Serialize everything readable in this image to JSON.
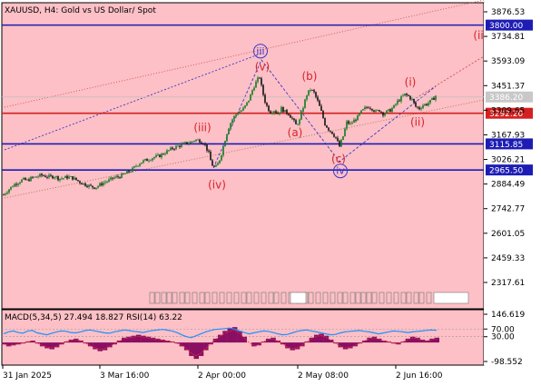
{
  "chart_data": {
    "type": "candlestick",
    "title": "XAUUSD, H4:  Gold vs US Dollar/ Spot",
    "y_ticks": [
      "3876.53",
      "3734.81",
      "3593.09",
      "3451.37",
      "3309.65",
      "3167.93",
      "3026.21",
      "2884.49",
      "2742.77",
      "2601.05",
      "2459.33",
      "2317.61"
    ],
    "x_ticks": [
      "31 Jan 2025",
      "3 Mar 16:00",
      "2 Apr 00:00",
      "2 May 08:00",
      "2 Jun 16:00"
    ],
    "ylim": [
      2250,
      3950
    ],
    "price_levels": [
      {
        "label": "3800.00",
        "price": 3800.0,
        "color": "#1d1db5"
      },
      {
        "label": "3292.20",
        "price": 3292.2,
        "color": "#d42020"
      },
      {
        "label": "3115.85",
        "price": 3115.85,
        "color": "#1d1db5"
      },
      {
        "label": "2965.50",
        "price": 2965.5,
        "color": "#1d1db5"
      }
    ],
    "current_price": {
      "label": "3386.20",
      "price": 3386.2
    },
    "price_path": [
      [
        0,
        2795
      ],
      [
        5,
        2830
      ],
      [
        10,
        2855
      ],
      [
        15,
        2880
      ],
      [
        20,
        2895
      ],
      [
        25,
        2910
      ],
      [
        30,
        2905
      ],
      [
        35,
        2920
      ],
      [
        40,
        2925
      ],
      [
        45,
        2935
      ],
      [
        50,
        2930
      ],
      [
        55,
        2925
      ],
      [
        60,
        2930
      ],
      [
        65,
        2915
      ],
      [
        70,
        2920
      ],
      [
        75,
        2925
      ],
      [
        80,
        2920
      ],
      [
        85,
        2905
      ],
      [
        90,
        2890
      ],
      [
        95,
        2880
      ],
      [
        100,
        2870
      ],
      [
        105,
        2865
      ],
      [
        110,
        2880
      ],
      [
        115,
        2895
      ],
      [
        120,
        2905
      ],
      [
        125,
        2920
      ],
      [
        130,
        2925
      ],
      [
        135,
        2935
      ],
      [
        140,
        2950
      ],
      [
        145,
        2965
      ],
      [
        150,
        2990
      ],
      [
        155,
        3010
      ],
      [
        160,
        3020
      ],
      [
        165,
        3030
      ],
      [
        170,
        3040
      ],
      [
        175,
        3045
      ],
      [
        180,
        3060
      ],
      [
        185,
        3075
      ],
      [
        190,
        3090
      ],
      [
        195,
        3100
      ],
      [
        200,
        3110
      ],
      [
        205,
        3120
      ],
      [
        210,
        3125
      ],
      [
        215,
        3140
      ],
      [
        220,
        3135
      ],
      [
        225,
        3120
      ],
      [
        230,
        3060
      ],
      [
        233,
        3000
      ],
      [
        237,
        2975
      ],
      [
        240,
        3000
      ],
      [
        243,
        3040
      ],
      [
        247,
        3120
      ],
      [
        251,
        3200
      ],
      [
        255,
        3250
      ],
      [
        259,
        3280
      ],
      [
        263,
        3300
      ],
      [
        267,
        3310
      ],
      [
        271,
        3340
      ],
      [
        275,
        3380
      ],
      [
        279,
        3440
      ],
      [
        283,
        3480
      ],
      [
        286,
        3500
      ],
      [
        289,
        3420
      ],
      [
        292,
        3360
      ],
      [
        295,
        3320
      ],
      [
        298,
        3300
      ],
      [
        302,
        3310
      ],
      [
        306,
        3290
      ],
      [
        310,
        3320
      ],
      [
        314,
        3300
      ],
      [
        318,
        3290
      ],
      [
        322,
        3260
      ],
      [
        326,
        3225
      ],
      [
        330,
        3250
      ],
      [
        334,
        3330
      ],
      [
        338,
        3400
      ],
      [
        342,
        3430
      ],
      [
        346,
        3410
      ],
      [
        350,
        3360
      ],
      [
        354,
        3300
      ],
      [
        358,
        3230
      ],
      [
        362,
        3200
      ],
      [
        366,
        3180
      ],
      [
        370,
        3150
      ],
      [
        374,
        3100
      ],
      [
        378,
        3160
      ],
      [
        382,
        3240
      ],
      [
        386,
        3230
      ],
      [
        390,
        3250
      ],
      [
        394,
        3270
      ],
      [
        398,
        3300
      ],
      [
        402,
        3320
      ],
      [
        406,
        3330
      ],
      [
        410,
        3320
      ],
      [
        414,
        3300
      ],
      [
        418,
        3310
      ],
      [
        422,
        3290
      ],
      [
        426,
        3300
      ],
      [
        430,
        3310
      ],
      [
        434,
        3330
      ],
      [
        438,
        3360
      ],
      [
        442,
        3380
      ],
      [
        446,
        3400
      ],
      [
        450,
        3390
      ],
      [
        454,
        3370
      ],
      [
        458,
        3330
      ],
      [
        462,
        3320
      ],
      [
        466,
        3340
      ],
      [
        470,
        3345
      ],
      [
        474,
        3360
      ],
      [
        478,
        3380
      ],
      [
        481,
        3400
      ]
    ],
    "wave_labels": [
      {
        "text": "(iii)",
        "x": 223,
        "price": 3210,
        "color": "red"
      },
      {
        "text": "(iv)",
        "x": 239,
        "price": 2880,
        "color": "red"
      },
      {
        "text": "(v)",
        "x": 289,
        "price": 3560,
        "color": "red"
      },
      {
        "text": "iii",
        "x": 287,
        "price": 3650,
        "color": "blue"
      },
      {
        "text": "(a)",
        "x": 325,
        "price": 3180,
        "color": "red"
      },
      {
        "text": "(b)",
        "x": 341,
        "price": 3505,
        "color": "red"
      },
      {
        "text": "(c)",
        "x": 373,
        "price": 3030,
        "color": "red"
      },
      {
        "text": "iv",
        "x": 375,
        "price": 2960,
        "color": "blue"
      },
      {
        "text": "(i)",
        "x": 452,
        "price": 3470,
        "color": "red"
      },
      {
        "text": "(ii)",
        "x": 460,
        "price": 3240,
        "color": "red"
      },
      {
        "text": "(ii",
        "x": 527,
        "price": 3740,
        "color": "red"
      }
    ],
    "indicator": {
      "label": "MACD(5,34,5) 27.494 18.827 RSI(14) 63.22",
      "y_ticks": [
        "146.619",
        "70.00",
        "30.00",
        "-98.552"
      ],
      "ylim": [
        -98.552,
        146.619
      ],
      "histogram": [
        -10,
        -20,
        -15,
        -10,
        -5,
        5,
        10,
        -5,
        -20,
        -30,
        -35,
        -25,
        -10,
        5,
        15,
        20,
        10,
        -5,
        -20,
        -35,
        -45,
        -40,
        -25,
        -10,
        10,
        25,
        30,
        35,
        40,
        35,
        30,
        25,
        20,
        15,
        10,
        5,
        -5,
        -20,
        -40,
        -70,
        -85,
        -70,
        -40,
        -10,
        20,
        40,
        60,
        75,
        80,
        60,
        30,
        0,
        -20,
        -15,
        5,
        20,
        25,
        10,
        -10,
        -30,
        -40,
        -35,
        -20,
        5,
        25,
        40,
        45,
        35,
        15,
        -5,
        -25,
        -35,
        -30,
        -20,
        -5,
        10,
        25,
        30,
        20,
        10,
        5,
        -5,
        -10,
        5,
        20,
        30,
        25,
        15,
        10,
        20,
        25
      ],
      "rsi": [
        45,
        55,
        60,
        52,
        48,
        60,
        62,
        50,
        45,
        40,
        48,
        55,
        60,
        58,
        52,
        50,
        55,
        62,
        65,
        60,
        55,
        50,
        48,
        55,
        60,
        65,
        62,
        58,
        55,
        52,
        58,
        62,
        65,
        68,
        64,
        60,
        52,
        40,
        30,
        25,
        35,
        45,
        55,
        62,
        68,
        70,
        72,
        75,
        70,
        60,
        52,
        45,
        50,
        55,
        60,
        58,
        52,
        45,
        40,
        42,
        50,
        58,
        62,
        65,
        60,
        55,
        50,
        45,
        40,
        42,
        50,
        55,
        58,
        60,
        62,
        58,
        55,
        50,
        45,
        50,
        55,
        60,
        58,
        55,
        52,
        55,
        58,
        60,
        63,
        65,
        63
      ]
    }
  }
}
